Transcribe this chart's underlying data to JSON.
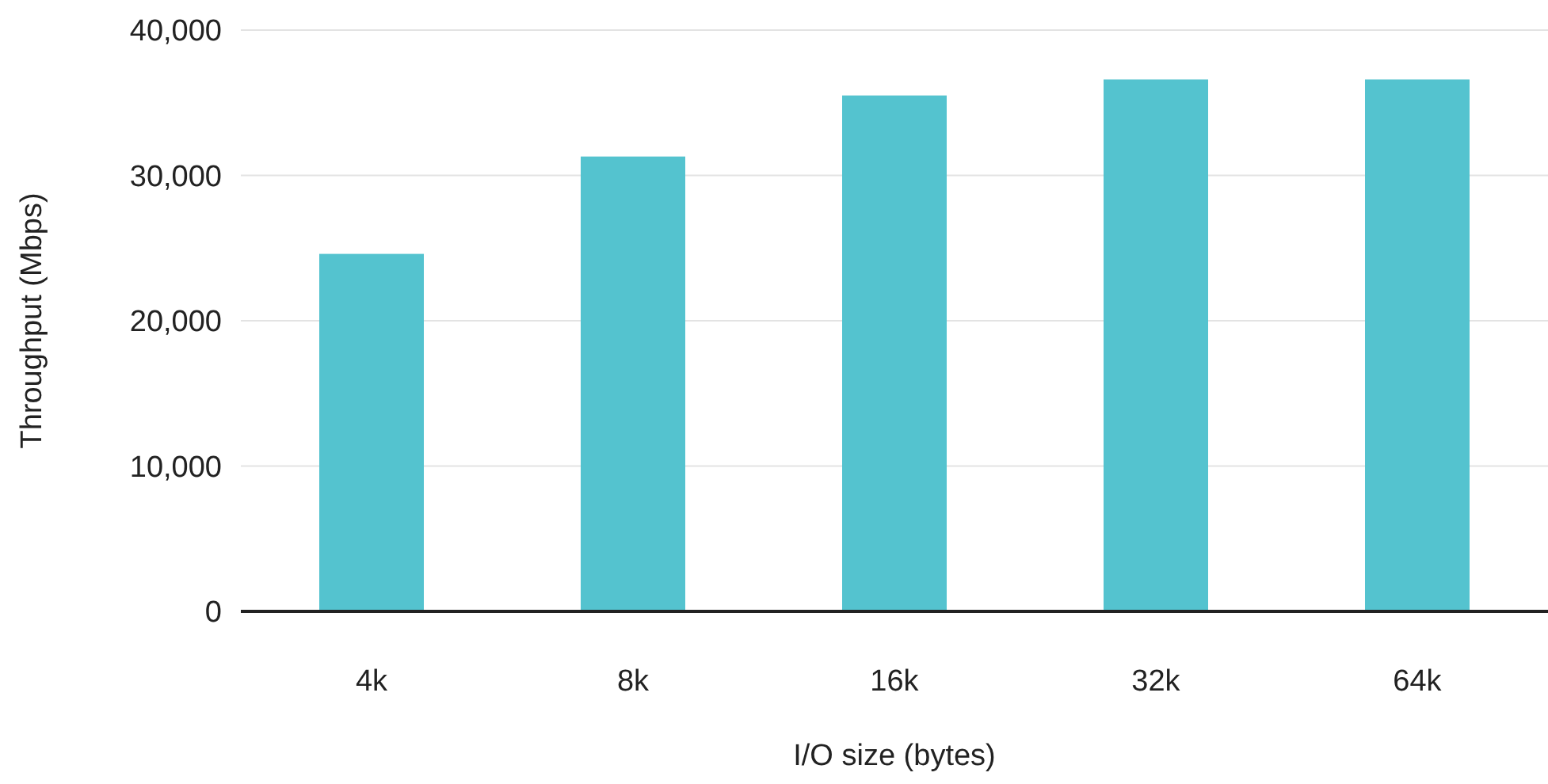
{
  "chart_data": {
    "type": "bar",
    "xlabel": "I/O size (bytes)",
    "ylabel": "Throughput (Mbps)",
    "categories": [
      "4k",
      "8k",
      "16k",
      "32k",
      "64k"
    ],
    "values": [
      24600,
      31300,
      35500,
      36600,
      36600
    ],
    "color": "#54c3cf",
    "ylim": [
      0,
      40000
    ],
    "yticks": [
      {
        "value": 0,
        "label": "0"
      },
      {
        "value": 10000,
        "label": "10,000"
      },
      {
        "value": 20000,
        "label": "20,000"
      },
      {
        "value": 30000,
        "label": "30,000"
      },
      {
        "value": 40000,
        "label": "40,000"
      }
    ],
    "grid": "y"
  }
}
